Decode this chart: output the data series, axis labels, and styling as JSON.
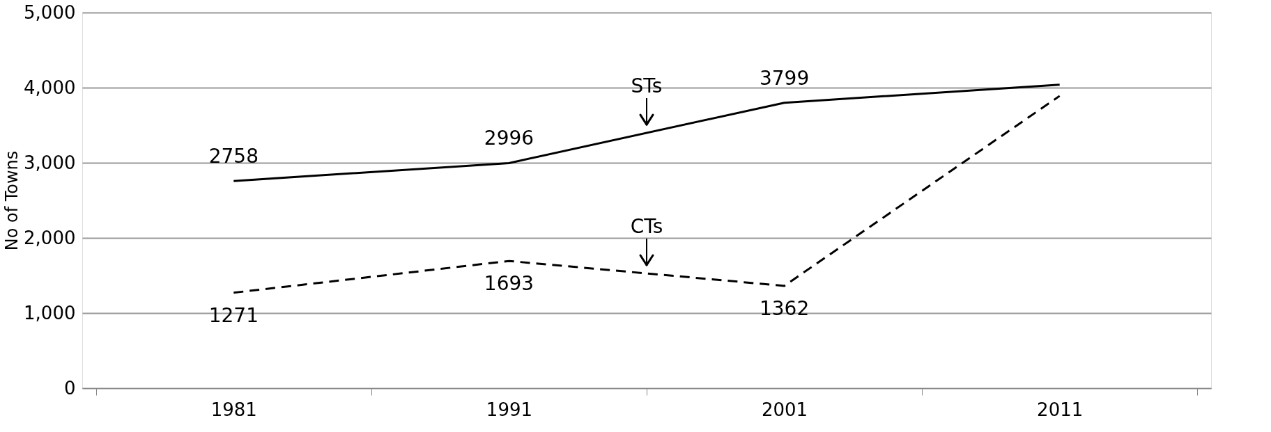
{
  "chart_data": {
    "type": "line",
    "ylabel": "No of Towns",
    "categories": [
      "1981",
      "1991",
      "2001",
      "2011"
    ],
    "series": [
      {
        "name": "STs",
        "color": "#000000",
        "line_style": "solid",
        "values": [
          2758,
          2996,
          3799,
          4040
        ],
        "value_labels": [
          "2758",
          "2996",
          "3799",
          null
        ]
      },
      {
        "name": "CTs",
        "color": "#000000",
        "line_style": "dashed",
        "values": [
          1271,
          1693,
          1362,
          3890
        ],
        "value_labels": [
          "1271",
          "1693",
          "1362",
          null
        ]
      }
    ],
    "ylim": [
      0,
      5000
    ],
    "yticks": [
      {
        "value": 0,
        "label": "0"
      },
      {
        "value": 1000,
        "label": "1,000"
      },
      {
        "value": 2000,
        "label": "2,000"
      },
      {
        "value": 3000,
        "label": "3,000"
      },
      {
        "value": 4000,
        "label": "4,000"
      },
      {
        "value": 5000,
        "label": "5,000"
      }
    ],
    "grid": "y",
    "marker": "none"
  }
}
